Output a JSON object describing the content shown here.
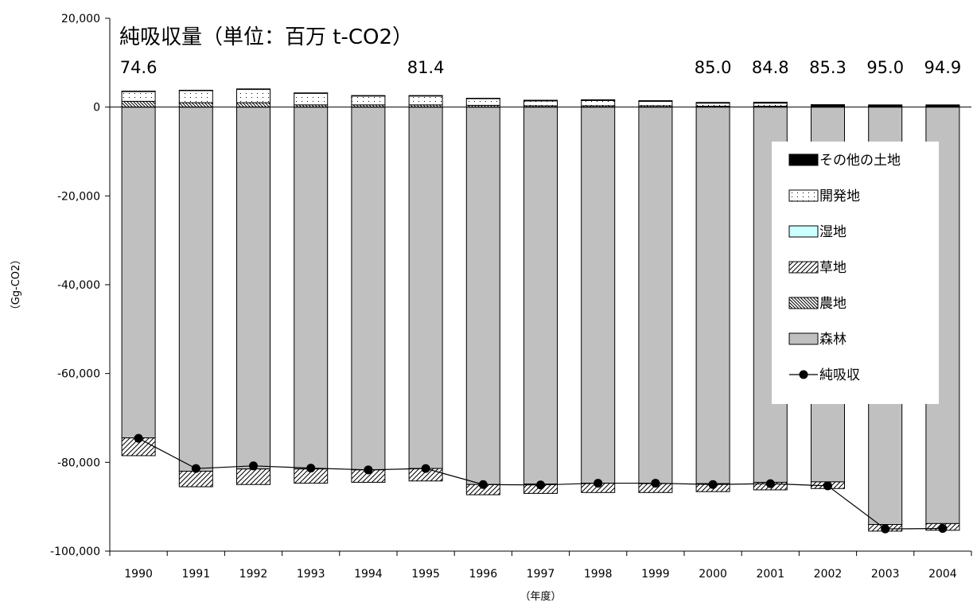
{
  "chart_data": {
    "type": "bar",
    "title": "純吸収量（単位：百万 t-CO2）",
    "xlabel": "（年度）",
    "ylabel": "（Gg-CO2）",
    "ylim": [
      -100000,
      20000
    ],
    "yticks": [
      20000,
      0,
      -20000,
      -40000,
      -60000,
      -80000,
      -100000
    ],
    "ytick_labels": [
      "20,000",
      "0",
      "-20,000",
      "-40,000",
      "-60,000",
      "-80,000",
      "-100,000"
    ],
    "categories": [
      "1990",
      "1991",
      "1992",
      "1993",
      "1994",
      "1995",
      "1996",
      "1997",
      "1998",
      "1999",
      "2000",
      "2001",
      "2002",
      "2003",
      "2004"
    ],
    "annotations": [
      {
        "category": "1990",
        "text": "74.6"
      },
      {
        "category": "1995",
        "text": "81.4"
      },
      {
        "category": "2000",
        "text": "85.0"
      },
      {
        "category": "2001",
        "text": "84.8"
      },
      {
        "category": "2002",
        "text": "85.3"
      },
      {
        "category": "2003",
        "text": "95.0"
      },
      {
        "category": "2004",
        "text": "94.9"
      }
    ],
    "legend_position": "right",
    "series": [
      {
        "name": "その他の土地",
        "kind": "bar",
        "pattern": "black",
        "values": [
          100,
          100,
          100,
          100,
          100,
          100,
          100,
          150,
          150,
          150,
          150,
          200,
          300,
          300,
          300
        ]
      },
      {
        "name": "開発地",
        "kind": "bar",
        "pattern": "dotted",
        "values": [
          2200,
          2700,
          3000,
          2600,
          2000,
          2000,
          1500,
          1100,
          1200,
          1000,
          700,
          700,
          150,
          100,
          100
        ]
      },
      {
        "name": "湿地",
        "kind": "bar",
        "pattern": "cyan",
        "values": [
          0,
          0,
          0,
          0,
          0,
          0,
          0,
          0,
          0,
          0,
          0,
          0,
          0,
          0,
          0
        ]
      },
      {
        "name": "草地",
        "kind": "bar",
        "pattern": "hatch-light",
        "values": [
          -4000,
          -3500,
          -3500,
          -3200,
          -2800,
          -2800,
          -2300,
          -2100,
          -2100,
          -2000,
          -1800,
          -1700,
          -1500,
          -1500,
          -1500
        ]
      },
      {
        "name": "農地",
        "kind": "bar",
        "pattern": "hatch-dense",
        "values": [
          1300,
          1000,
          1000,
          500,
          500,
          500,
          400,
          300,
          300,
          300,
          200,
          200,
          100,
          100,
          100
        ]
      },
      {
        "name": "森林",
        "kind": "bar",
        "pattern": "gray",
        "values": [
          -74500,
          -82000,
          -81500,
          -81500,
          -81700,
          -81400,
          -85000,
          -84900,
          -84700,
          -84800,
          -84800,
          -84500,
          -84400,
          -94000,
          -93800
        ]
      },
      {
        "name": "純吸収",
        "kind": "line",
        "values": [
          -74600,
          -81400,
          -80800,
          -81300,
          -81700,
          -81400,
          -85000,
          -85100,
          -84700,
          -84700,
          -85000,
          -84800,
          -85300,
          -95000,
          -94900
        ]
      }
    ],
    "colors": {
      "forest": "#c0c0c0",
      "wetland": "#ccffff",
      "other": "#000000",
      "grid": "#000000",
      "line": "#000000"
    }
  }
}
